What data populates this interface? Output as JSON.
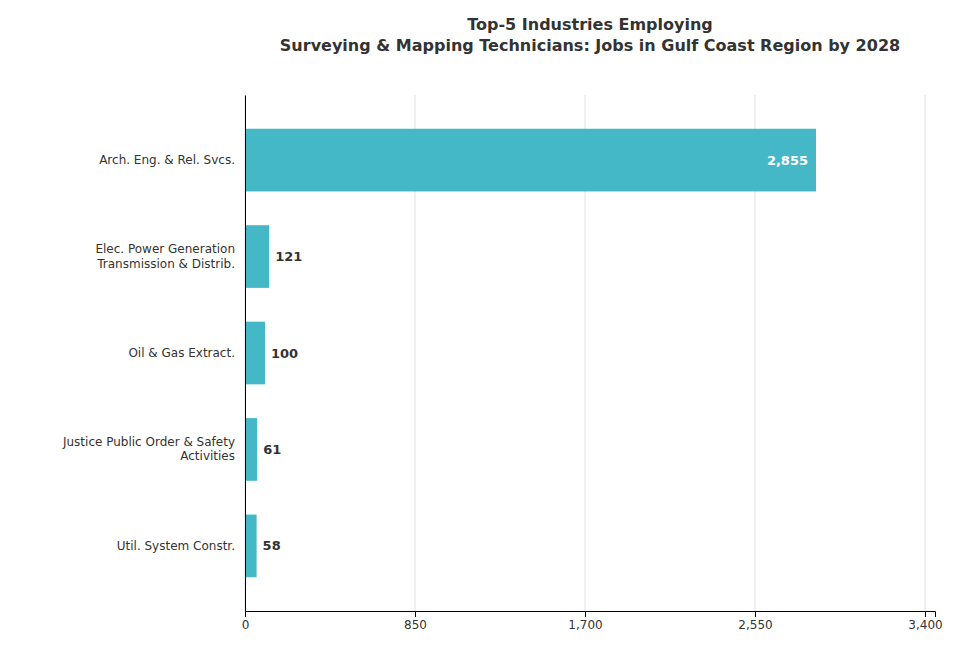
{
  "chart_data": {
    "type": "bar",
    "orientation": "horizontal",
    "title": "Top-5 Industries Employing\nSurveying & Mapping Technicians: Jobs in Gulf Coast Region by 2028",
    "categories": [
      "Arch. Eng. & Rel. Svcs.",
      "Elec. Power Generation\nTransmission & Distrib.",
      "Oil & Gas Extract.",
      "Justice Public Order & Safety\nActivities",
      "Util. System Constr."
    ],
    "values": [
      2855,
      121,
      100,
      61,
      58
    ],
    "value_labels": [
      "2,855",
      "121",
      "100",
      "61",
      "58"
    ],
    "data_labels": true,
    "color": "#45B8C8",
    "xlim": [
      0,
      3450
    ],
    "xticks": [
      0,
      850,
      {
        "value": 1700,
        "label": "1,700"
      },
      {
        "value": 2550,
        "label": "2,550"
      },
      {
        "value": 3400,
        "label": "3,400"
      }
    ],
    "grid": true
  }
}
